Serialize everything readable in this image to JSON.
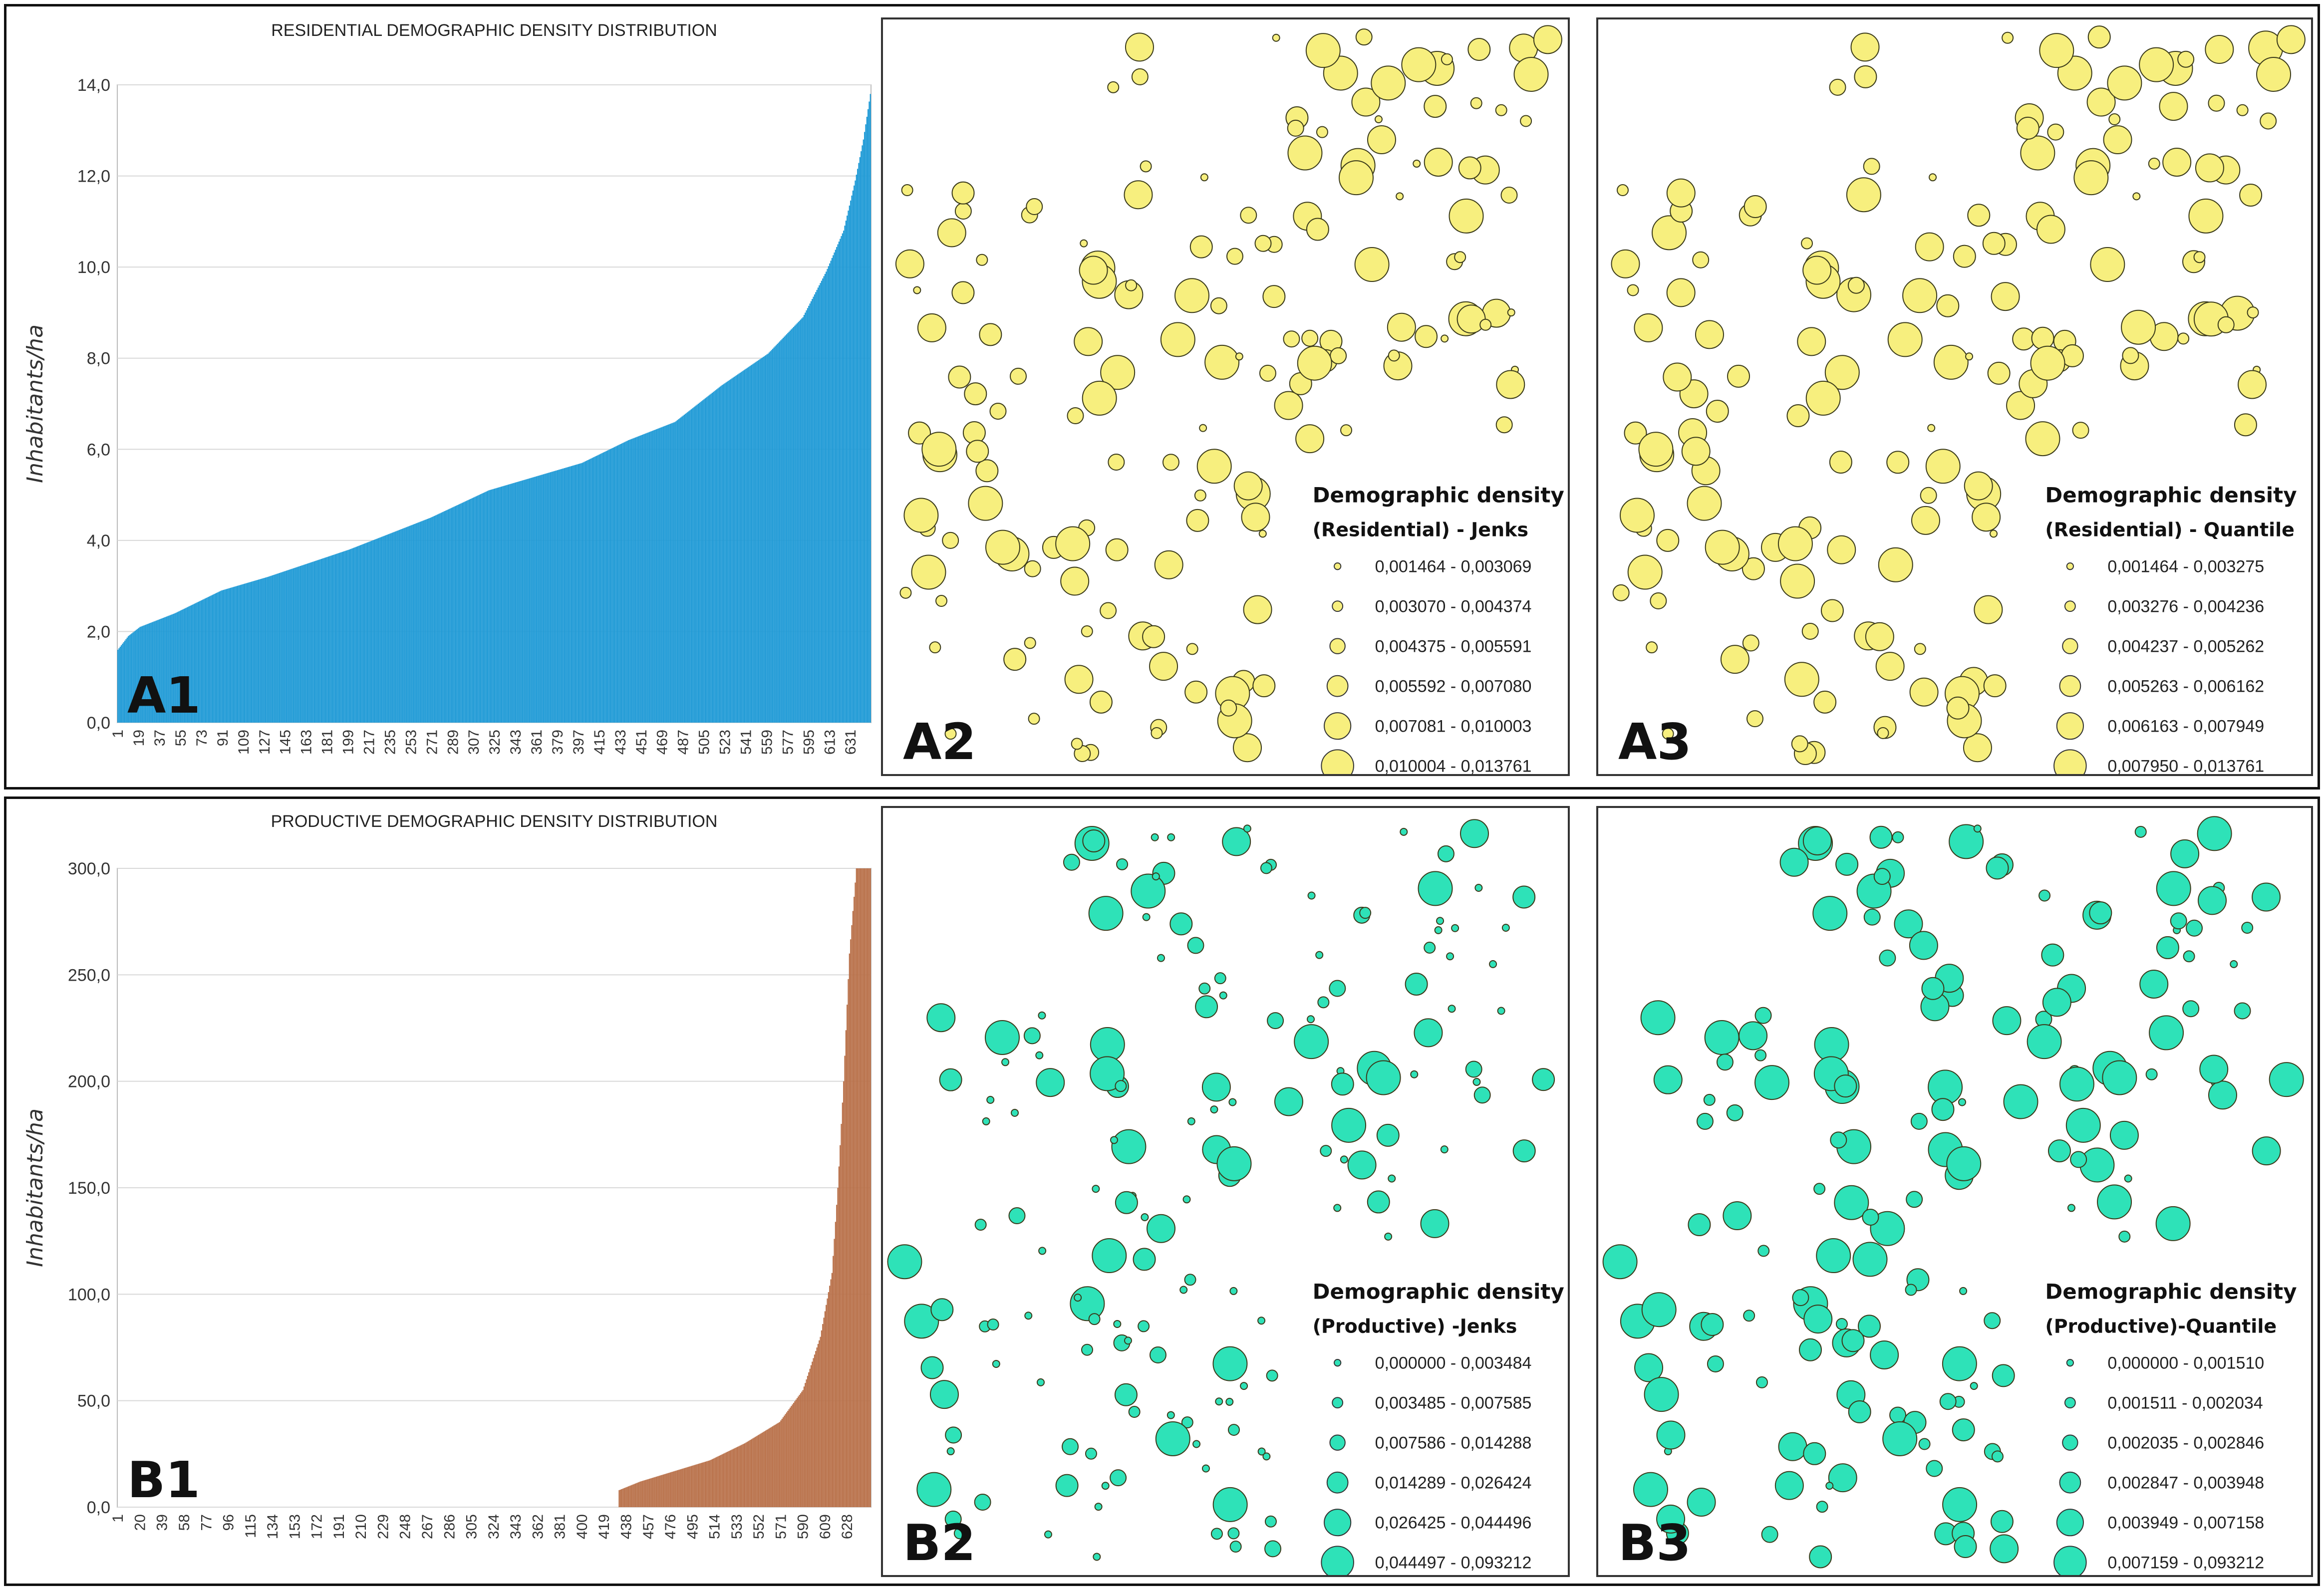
{
  "chart_data": [
    {
      "id": "A1",
      "type": "bar",
      "panel_label": "A1",
      "title": "RESIDENTIAL DEMOGRAPHIC DENSITY DISTRIBUTION",
      "xlabel": "",
      "ylabel": "Inhabitants/ha",
      "ylim": [
        0,
        14
      ],
      "yticks": [
        "0,0",
        "2,0",
        "4,0",
        "6,0",
        "8,0",
        "10,0",
        "12,0",
        "14,0"
      ],
      "ytick_values": [
        0,
        2,
        4,
        6,
        8,
        10,
        12,
        14
      ],
      "xticks": [
        "1",
        "19",
        "37",
        "55",
        "73",
        "91",
        "109",
        "127",
        "145",
        "163",
        "181",
        "199",
        "217",
        "235",
        "253",
        "271",
        "289",
        "307",
        "325",
        "343",
        "361",
        "379",
        "397",
        "415",
        "433",
        "451",
        "469",
        "487",
        "505",
        "523",
        "541",
        "559",
        "577",
        "595",
        "613",
        "631"
      ],
      "n_categories": 648,
      "color": "#1f9ad6",
      "profile_index": [
        1,
        10,
        20,
        50,
        90,
        130,
        200,
        270,
        320,
        360,
        400,
        440,
        480,
        520,
        560,
        590,
        610,
        625,
        635,
        642,
        648
      ],
      "profile_value": [
        1.6,
        1.9,
        2.1,
        2.4,
        2.9,
        3.2,
        3.8,
        4.5,
        5.1,
        5.4,
        5.7,
        6.2,
        6.6,
        7.4,
        8.1,
        8.9,
        9.9,
        10.8,
        11.9,
        12.8,
        13.8
      ]
    },
    {
      "id": "B1",
      "type": "bar",
      "panel_label": "B1",
      "title": "PRODUCTIVE DEMOGRAPHIC DENSITY DISTRIBUTION",
      "xlabel": "",
      "ylabel": "Inhabitants/ha",
      "ylim": [
        0,
        300
      ],
      "yticks": [
        "0,0",
        "50,0",
        "100,0",
        "150,0",
        "200,0",
        "250,0",
        "300,0"
      ],
      "ytick_values": [
        0,
        50,
        100,
        150,
        200,
        250,
        300
      ],
      "xticks": [
        "1",
        "20",
        "39",
        "58",
        "77",
        "96",
        "115",
        "134",
        "153",
        "172",
        "191",
        "210",
        "229",
        "248",
        "267",
        "286",
        "305",
        "324",
        "343",
        "362",
        "381",
        "400",
        "419",
        "438",
        "457",
        "476",
        "495",
        "514",
        "533",
        "552",
        "571",
        "590",
        "609",
        "628"
      ],
      "n_categories": 648,
      "color": "#b9714a",
      "profile_index": [
        1,
        431,
        432,
        450,
        480,
        510,
        540,
        570,
        590,
        605,
        615,
        620,
        625,
        630,
        636,
        640,
        648
      ],
      "profile_value": [
        0,
        0,
        8,
        12,
        17,
        22,
        30,
        40,
        55,
        80,
        110,
        150,
        200,
        260,
        300,
        300,
        300
      ]
    }
  ],
  "maps": [
    {
      "id": "A2",
      "panel_label": "A2",
      "legend_title": "Demographic density",
      "legend_subtitle": "(Residential) - Jenks",
      "fill": "#f7ef7e",
      "classes": [
        "0,001464 - 0,003069",
        "0,003070 - 0,004374",
        "0,004375 - 0,005591",
        "0,005592 - 0,007080",
        "0,007081 - 0,010003",
        "0,010004 - 0,013761"
      ]
    },
    {
      "id": "A3",
      "panel_label": "A3",
      "legend_title": "Demographic density",
      "legend_subtitle": "(Residential) - Quantile",
      "fill": "#f7ef7e",
      "classes": [
        "0,001464 - 0,003275",
        "0,003276 - 0,004236",
        "0,004237 - 0,005262",
        "0,005263 - 0,006162",
        "0,006163 - 0,007949",
        "0,007950 - 0,013761"
      ]
    },
    {
      "id": "B2",
      "panel_label": "B2",
      "legend_title": "Demographic density",
      "legend_subtitle": "(Productive) -Jenks",
      "fill": "#2ee2b8",
      "classes": [
        "0,000000 - 0,003484",
        "0,003485 - 0,007585",
        "0,007586 - 0,014288",
        "0,014289 - 0,026424",
        "0,026425 - 0,044496",
        "0,044497 - 0,093212"
      ]
    },
    {
      "id": "B3",
      "panel_label": "B3",
      "legend_title": "Demographic density",
      "legend_subtitle": "(Productive)-Quantile",
      "fill": "#2ee2b8",
      "classes": [
        "0,000000 - 0,001510",
        "0,001511 - 0,002034",
        "0,002035 - 0,002846",
        "0,002847 - 0,003948",
        "0,003949 - 0,007158",
        "0,007159 - 0,093212"
      ]
    }
  ]
}
